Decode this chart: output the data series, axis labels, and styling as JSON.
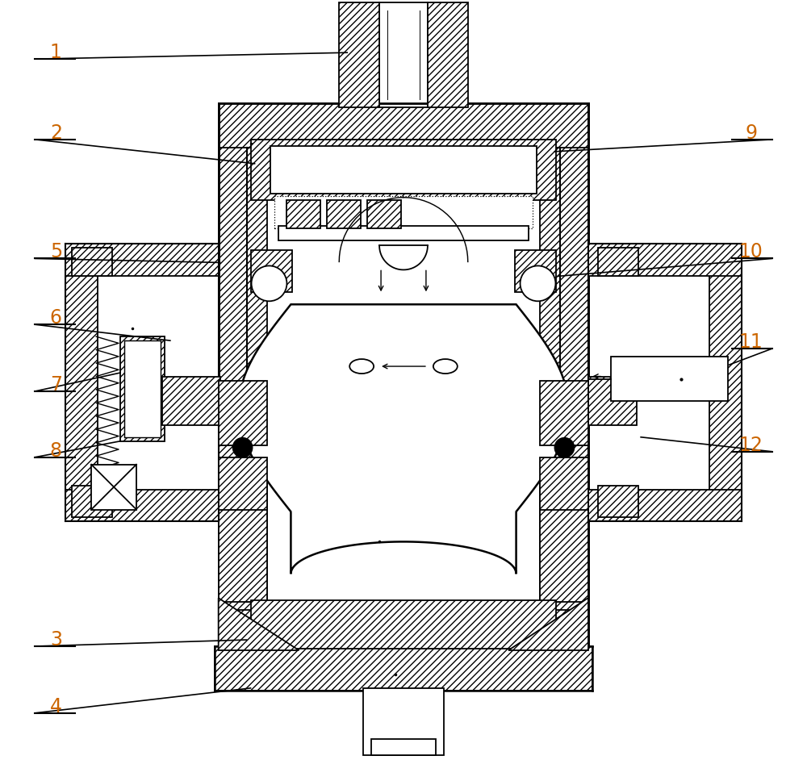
{
  "bg_color": "#ffffff",
  "line_color": "#000000",
  "label_color": "#cc6600",
  "label_fontsize": 17,
  "lw": 1.3
}
